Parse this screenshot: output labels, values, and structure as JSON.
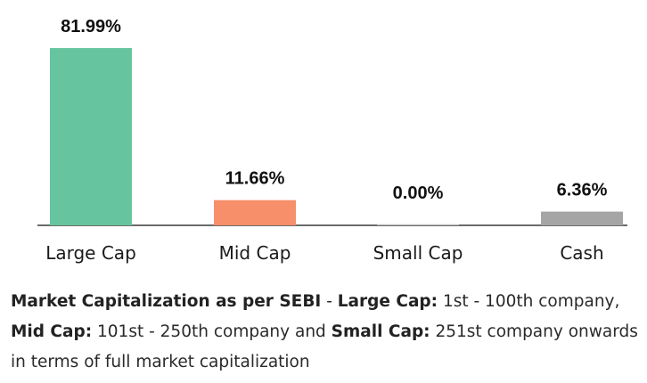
{
  "chart_data": {
    "type": "bar",
    "categories": [
      "Large Cap",
      "Mid Cap",
      "Small Cap",
      "Cash"
    ],
    "values": [
      81.99,
      11.66,
      0.0,
      6.36
    ],
    "value_labels": [
      "81.99%",
      "11.66%",
      "0.00%",
      "6.36%"
    ],
    "colors": [
      "#66c59e",
      "#f78f6a",
      "#bdbdbd",
      "#a5a5a5"
    ],
    "ylim": [
      0,
      81.99
    ],
    "grid": false,
    "legend": "none",
    "title": "",
    "xlabel": "",
    "ylabel": ""
  },
  "note": {
    "segments": [
      {
        "text": "Market Capitalization as per SEBI",
        "bold": true
      },
      {
        "text": " - ",
        "bold": false
      },
      {
        "text": "Large Cap:",
        "bold": true
      },
      {
        "text": " 1st - 100th company, ",
        "bold": false
      },
      {
        "text": "Mid Cap:",
        "bold": true
      },
      {
        "text": " 101st - 250th company and ",
        "bold": false
      },
      {
        "text": "Small Cap:",
        "bold": true
      },
      {
        "text": " 251st company onwards in terms of full market capitalization",
        "bold": false
      }
    ]
  }
}
